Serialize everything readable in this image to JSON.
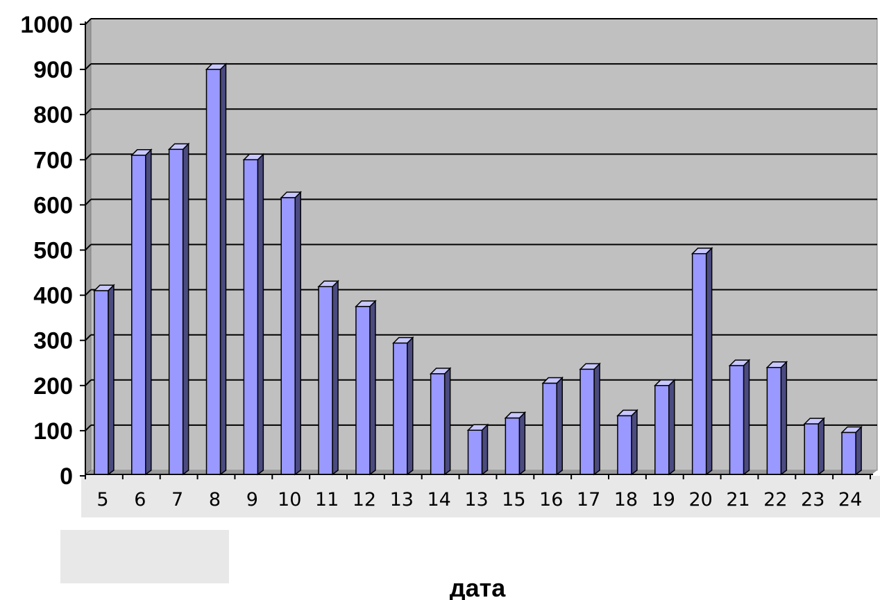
{
  "chart_data": {
    "type": "bar",
    "title": "",
    "xlabel": "дата",
    "ylabel": "",
    "ylim": [
      0,
      1000
    ],
    "yticks": [
      0,
      100,
      200,
      300,
      400,
      500,
      600,
      700,
      800,
      900,
      1000
    ],
    "grid": true,
    "three_d": true,
    "categories": [
      "5",
      "6",
      "7",
      "8",
      "9",
      "10",
      "11",
      "12",
      "13",
      "14",
      "13",
      "15",
      "16",
      "17",
      "18",
      "19",
      "20",
      "21",
      "22",
      "23",
      "24"
    ],
    "series": [
      {
        "values": [
          410,
          710,
          723,
          900,
          700,
          616,
          419,
          375,
          294,
          226,
          101,
          128,
          205,
          236,
          133,
          200,
          492,
          244,
          240,
          115,
          96
        ]
      }
    ],
    "colors": {
      "plot_background": "#c0c0c0",
      "bar_front": "#9999ff",
      "bar_side": "#4b4b80",
      "bar_top": "#c8c8ff",
      "gridline": "#000000",
      "label_band": "#e8e8e8"
    }
  }
}
